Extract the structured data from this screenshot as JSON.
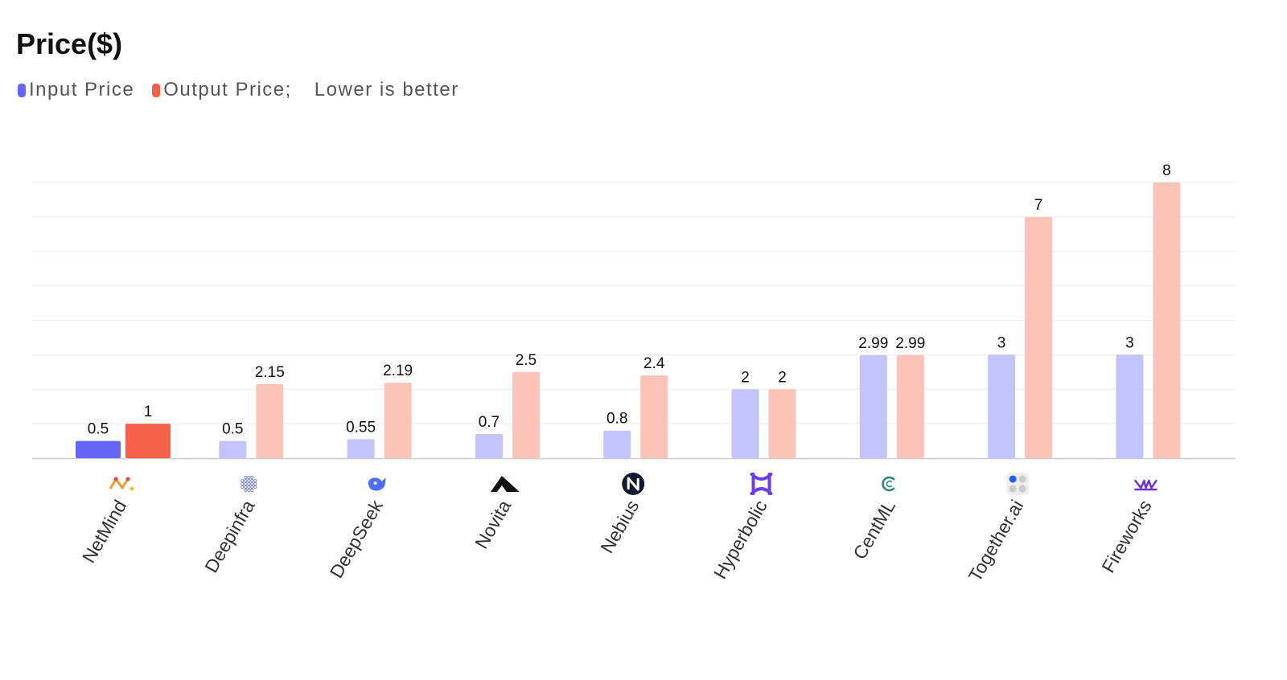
{
  "title": "Price($)",
  "legend": {
    "input_label": "Input Price",
    "output_label": "Output Price;",
    "note": "Lower is better"
  },
  "colors": {
    "input_highlight": "#6366f6",
    "output_highlight": "#f4604a",
    "input": "#c3c4fb",
    "output": "#fcc4b8",
    "grid": "#ececec",
    "axis": "#cccccc"
  },
  "chart_data": {
    "type": "bar",
    "categories": [
      "NetMind",
      "Deepinfra",
      "DeepSeek",
      "Novita",
      "Nebius",
      "Hyperbolic",
      "CentML",
      "Together.ai",
      "Fireworks"
    ],
    "category_icons": [
      "netmind-logo-icon",
      "deepinfra-logo-icon",
      "deepseek-whale-icon",
      "novita-logo-icon",
      "nebius-logo-icon",
      "hyperbolic-logo-icon",
      "centml-logo-icon",
      "together-ai-logo-icon",
      "fireworks-logo-icon"
    ],
    "series": [
      {
        "name": "Input Price",
        "values": [
          0.5,
          0.5,
          0.55,
          0.7,
          0.8,
          2,
          2.99,
          3,
          3
        ]
      },
      {
        "name": "Output Price",
        "values": [
          1,
          2.15,
          2.19,
          2.5,
          2.4,
          2,
          2.99,
          7,
          8
        ]
      }
    ],
    "value_labels": {
      "input": [
        "0.5",
        "0.5",
        "0.55",
        "0.7",
        "0.8",
        "2",
        "2.99",
        "3",
        "3"
      ],
      "output": [
        "1",
        "2.15",
        "2.19",
        "2.5",
        "2.4",
        "2",
        "2.99",
        "7",
        "8"
      ]
    },
    "highlighted_category": "NetMind",
    "ylim": [
      0,
      8
    ],
    "grid": true,
    "legend_position": "top-left"
  }
}
